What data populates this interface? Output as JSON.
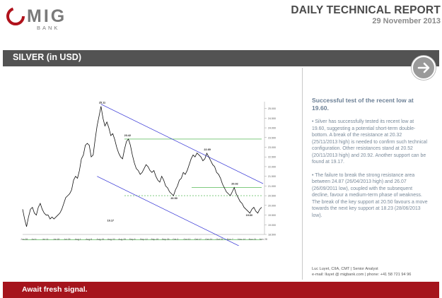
{
  "brand": {
    "logo_main": "MIG",
    "logo_sub": "BANK",
    "colors": {
      "red": "#b0121b",
      "grey": "#7a7a7a"
    }
  },
  "header": {
    "title": "DAILY TECHNICAL REPORT",
    "date": "29 November 2013"
  },
  "section": {
    "title": "SILVER (in USD)",
    "arrow_icon": "arrow-right-icon"
  },
  "chart_data": {
    "type": "line",
    "title": "",
    "xlabel": "",
    "ylabel": "",
    "x_ticks": [
      "Jun 28",
      "Jul 4",
      "Jul 11",
      "Jul 18",
      "Jul 25",
      "Aug 1",
      "Aug 8",
      "Aug 15",
      "Aug 22",
      "Aug 29",
      "Sep 5",
      "Sep 12",
      "Sep 19",
      "Sep 26",
      "Oct 3",
      "Oct 10",
      "Oct 17",
      "Oct 24",
      "Oct 31",
      "Nov 7",
      "Nov 14",
      "Nov 21",
      "Nov 28"
    ],
    "y_ticks": [
      18.5,
      19.0,
      19.5,
      20.0,
      20.5,
      21.0,
      21.5,
      22.0,
      22.5,
      23.0,
      23.5,
      24.0,
      24.5,
      25.0
    ],
    "ylim": [
      18.5,
      25.35
    ],
    "series": [
      {
        "values": [
          19.8,
          19.3,
          18.9,
          19.4,
          19.8,
          19.9,
          19.6,
          19.5,
          19.9,
          20.1,
          19.8,
          19.6,
          19.5,
          19.5,
          19.3,
          19.4,
          19.3,
          19.4,
          19.5,
          19.6,
          19.8,
          20.1,
          20.4,
          20.5,
          20.6,
          20.8,
          21.3,
          21.5,
          21.4,
          21.8,
          22.4,
          22.6,
          23.1,
          23.2,
          23.1,
          22.5,
          22.6,
          23.4,
          24.1,
          24.6,
          25.11,
          24.5,
          24.1,
          24.3,
          24.0,
          23.6,
          23.7,
          23.4,
          23.0,
          22.7,
          22.5,
          22.4,
          22.9,
          23.3,
          23.42,
          23.1,
          22.6,
          22.2,
          21.9,
          21.8,
          21.6,
          21.7,
          21.9,
          22.1,
          22.0,
          21.8,
          21.7,
          21.8,
          21.5,
          21.3,
          21.2,
          21.5,
          21.3,
          21.0,
          20.9,
          20.7,
          20.6,
          20.5,
          20.8,
          21.0,
          21.3,
          21.4,
          21.7,
          21.6,
          21.8,
          22.1,
          22.4,
          22.6,
          22.5,
          22.7,
          22.6,
          22.5,
          22.3,
          22.4,
          22.69,
          22.5,
          22.3,
          22.1,
          22.0,
          21.7,
          21.6,
          21.4,
          21.1,
          20.9,
          20.7,
          20.6,
          20.5,
          20.7,
          20.92,
          20.6,
          20.4,
          20.2,
          20.1,
          19.9,
          19.8,
          19.7,
          19.6,
          19.8,
          19.9,
          19.7,
          19.6,
          19.8,
          19.9
        ]
      }
    ],
    "annotations": [
      {
        "label": "25.11"
      },
      {
        "label": "23.42"
      },
      {
        "label": "22.69"
      },
      {
        "label": "20.92"
      },
      {
        "label": "20.50"
      },
      {
        "label": "19.17"
      },
      {
        "label": "19.60"
      },
      {
        "label": "18.23"
      }
    ],
    "horizontal_lines": [
      23.42,
      20.92,
      20.5,
      18.23
    ],
    "grid": false,
    "colors": {
      "price": "#111111",
      "channel": "#2b2bd4",
      "resistance": "#33aa33"
    }
  },
  "commentary": {
    "heading": "Successful test of the recent low at 19.60.",
    "bullets": [
      "• Silver has successfully tested its recent low at 19.60, suggesting a potential short-term double-bottom. A break of the resistance at 20.32 (25/11/2013 high) is needed to confirm such technical configuration. Other resistances stand at 20.52 (20/11/2013 high) and 20.92. Another support can be found at 19.17.",
      "• The failure to break the strong resistance area between 24.87 (26/04/2013 high) and 26.07 (26/09/2011 low), coupled with the subsequent decline, favour a medium-term phase of weakness. The break of the key support at 20.50 favours a move towards the next key support at 18.23 (28/06/2013 low)."
    ]
  },
  "analyst": {
    "line1": "Luc Luyet, CIIA, CMT | Senior Analyst",
    "line2": "e-mail: lluyet @ migbank.com | phone: +41 58 721 94 96"
  },
  "footer": {
    "text": "Await fresh signal."
  }
}
